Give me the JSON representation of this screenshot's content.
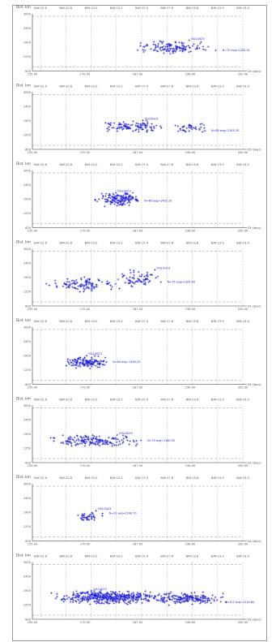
{
  "chart_data": [
    {
      "type": "scatter",
      "title": "",
      "y_axis_title": "Dist. km",
      "x_axis_title": "Dt (days)",
      "top_tick_labels": [
        "BAY-22.6",
        "BAY-22.8",
        "BAY-23.0",
        "BAY-23.2",
        "BAY-27.4",
        "BAY-27.6",
        "BAY-23.8",
        "BAY-23.9",
        "BAY-23.0"
      ],
      "bottom_tick_labels": [
        "155.00",
        "170.00",
        "187.00",
        "196.00",
        "205.00"
      ],
      "y_tick_labels": [
        "600",
        "1250",
        "1900",
        "2450",
        "3000"
      ],
      "xlim": [
        150,
        210
      ],
      "ylim": [
        0,
        3000
      ],
      "cluster_label": "OGL0023",
      "stats_label": "N=72 avg=1250.15",
      "clusters": [
        {
          "cx": 191,
          "cy": 1250,
          "sx": 7,
          "sy": 210,
          "n": 130
        }
      ],
      "points_color": "#2222dd"
    },
    {
      "type": "scatter",
      "title": "",
      "y_axis_title": "Dist. km",
      "x_axis_title": "Dt (days)",
      "top_tick_labels": [
        "BAY-22.6",
        "BAY-22.8",
        "BAY-23.0",
        "BAY-23.2",
        "BAY-27.4",
        "BAY-27.6",
        "BAY-23.8",
        "BAY-23.9",
        "BAY-23.0"
      ],
      "bottom_tick_labels": [
        "155.00",
        "170.00",
        "187.00",
        "196.00",
        "205.00"
      ],
      "y_tick_labels": [
        "600",
        "1250",
        "1900",
        "2450",
        "3000"
      ],
      "xlim": [
        150,
        210
      ],
      "ylim": [
        0,
        3000
      ],
      "cluster_label": "OGL0023",
      "stats_label": "N=68 avg=1245.33",
      "clusters": [
        {
          "cx": 179,
          "cy": 1200,
          "sx": 5,
          "sy": 200,
          "n": 110
        },
        {
          "cx": 195,
          "cy": 1150,
          "sx": 3,
          "sy": 180,
          "n": 40
        }
      ],
      "points_color": "#2222dd"
    },
    {
      "type": "scatter",
      "title": "",
      "y_axis_title": "Dist. km",
      "x_axis_title": "Dt (days)",
      "top_tick_labels": [
        "BAY-22.6",
        "BAY-22.8",
        "BAY-23.0",
        "BAY-23.2",
        "BAY-27.4",
        "BAY-27.6",
        "BAY-23.8",
        "BAY-23.9",
        "BAY-23.0"
      ],
      "bottom_tick_labels": [
        "155.00",
        "170.00",
        "187.00",
        "196.00",
        "205.00"
      ],
      "y_tick_labels": [
        "600",
        "1250",
        "1900",
        "2450",
        "3000"
      ],
      "xlim": [
        150,
        210
      ],
      "ylim": [
        0,
        3000
      ],
      "cluster_label": "OGL0023",
      "stats_label": "N=80 avg=1402.10",
      "clusters": [
        {
          "cx": 175,
          "cy": 1500,
          "sx": 4,
          "sy": 250,
          "n": 150
        }
      ],
      "points_color": "#2222dd"
    },
    {
      "type": "scatter",
      "title": "",
      "y_axis_title": "Dist. km",
      "x_axis_title": "Dt (days)",
      "top_tick_labels": [
        "BAY-22.6",
        "BAY-22.8",
        "BAY-23.0",
        "BAY-23.2",
        "BAY-27.4",
        "BAY-27.6",
        "BAY-23.8",
        "BAY-23.9",
        "BAY-23.0"
      ],
      "bottom_tick_labels": [
        "155.00",
        "170.00",
        "187.00",
        "196.00",
        "205.00"
      ],
      "y_tick_labels": [
        "600",
        "1250",
        "1900",
        "2450",
        "3000"
      ],
      "xlim": [
        150,
        210
      ],
      "ylim": [
        0,
        3000
      ],
      "cluster_label": "OGL0023",
      "stats_label": "N=75 avg=1320.48",
      "clusters": [
        {
          "cx": 165,
          "cy": 1100,
          "sx": 6,
          "sy": 230,
          "n": 110
        },
        {
          "cx": 180,
          "cy": 1450,
          "sx": 4,
          "sy": 300,
          "n": 70
        }
      ],
      "points_color": "#2222dd"
    },
    {
      "type": "scatter",
      "title": "",
      "y_axis_title": "Dist. km",
      "x_axis_title": "Dt (days)",
      "top_tick_labels": [
        "BAY-22.6",
        "BAY-22.8",
        "BAY-23.0",
        "BAY-23.2",
        "BAY-27.4",
        "BAY-27.6",
        "BAY-23.8",
        "BAY-23.9",
        "BAY-23.0"
      ],
      "bottom_tick_labels": [
        "155.00",
        "170.00",
        "187.00",
        "196.00",
        "205.00"
      ],
      "y_tick_labels": [
        "600",
        "1250",
        "1900",
        "2450",
        "3000"
      ],
      "xlim": [
        150,
        210
      ],
      "ylim": [
        0,
        3000
      ],
      "cluster_label": "OGL0023",
      "stats_label": "N=64 avg=1180.22",
      "clusters": [
        {
          "cx": 166,
          "cy": 1150,
          "sx": 4,
          "sy": 200,
          "n": 140
        }
      ],
      "points_color": "#2222dd"
    },
    {
      "type": "scatter",
      "title": "",
      "y_axis_title": "Dist. km",
      "x_axis_title": "Dt (days)",
      "top_tick_labels": [
        "BAY-22.6",
        "BAY-22.8",
        "BAY-23.0",
        "BAY-23.2",
        "BAY-27.4",
        "BAY-27.6",
        "BAY-23.8",
        "BAY-23.9",
        "BAY-23.0"
      ],
      "bottom_tick_labels": [
        "155.00",
        "170.00",
        "187.00",
        "196.00",
        "205.00"
      ],
      "y_tick_labels": [
        "600",
        "1250",
        "1900",
        "2450",
        "3000"
      ],
      "xlim": [
        150,
        210
      ],
      "ylim": [
        0,
        3000
      ],
      "cluster_label": "OGL0023",
      "stats_label": "N=70 avg=1160.05",
      "clusters": [
        {
          "cx": 168,
          "cy": 1150,
          "sx": 8,
          "sy": 200,
          "n": 170
        }
      ],
      "points_color": "#2222dd"
    },
    {
      "type": "scatter",
      "title": "",
      "y_axis_title": "Dist. km",
      "x_axis_title": "Dt (days)",
      "top_tick_labels": [
        "BAY-22.6",
        "BAY-22.8",
        "BAY-23.0",
        "BAY-23.2",
        "BAY-27.4",
        "BAY-27.6",
        "BAY-23.8",
        "BAY-23.9",
        "BAY-23.0"
      ],
      "bottom_tick_labels": [
        "155.00",
        "170.00",
        "187.00",
        "196.00",
        "205.00"
      ],
      "y_tick_labels": [
        "600",
        "1250",
        "1900",
        "2450",
        "3000"
      ],
      "xlim": [
        150,
        210
      ],
      "ylim": [
        0,
        3000
      ],
      "cluster_label": "OGL0023",
      "stats_label": "N=22 avg=1240.70",
      "clusters": [
        {
          "cx": 166,
          "cy": 1250,
          "sx": 2.5,
          "sy": 200,
          "n": 40
        }
      ],
      "points_color": "#2222dd"
    },
    {
      "type": "scatter",
      "title": "",
      "y_axis_title": "Dist. km",
      "x_axis_title": "Dt (days)",
      "top_tick_labels": [
        "BAY-22.6",
        "BAY-22.8",
        "BAY-23.0",
        "BAY-23.2",
        "BAY-27.4",
        "BAY-27.6",
        "BAY-23.8",
        "BAY-23.9",
        "BAY-23.0"
      ],
      "bottom_tick_labels": [
        "155.00",
        "170.00",
        "187.00",
        "196.00",
        "205.00"
      ],
      "y_tick_labels": [
        "600",
        "1250",
        "1900",
        "2450",
        "3000"
      ],
      "xlim": [
        150,
        210
      ],
      "ylim": [
        0,
        3000
      ],
      "cluster_label": "OGL0023",
      "stats_label": "N=412 avg=1210.64",
      "clusters": [
        {
          "cx": 172,
          "cy": 1150,
          "sx": 10,
          "sy": 220,
          "n": 420
        },
        {
          "cx": 195,
          "cy": 1100,
          "sx": 6,
          "sy": 200,
          "n": 180
        }
      ],
      "points_color": "#2222dd"
    }
  ]
}
